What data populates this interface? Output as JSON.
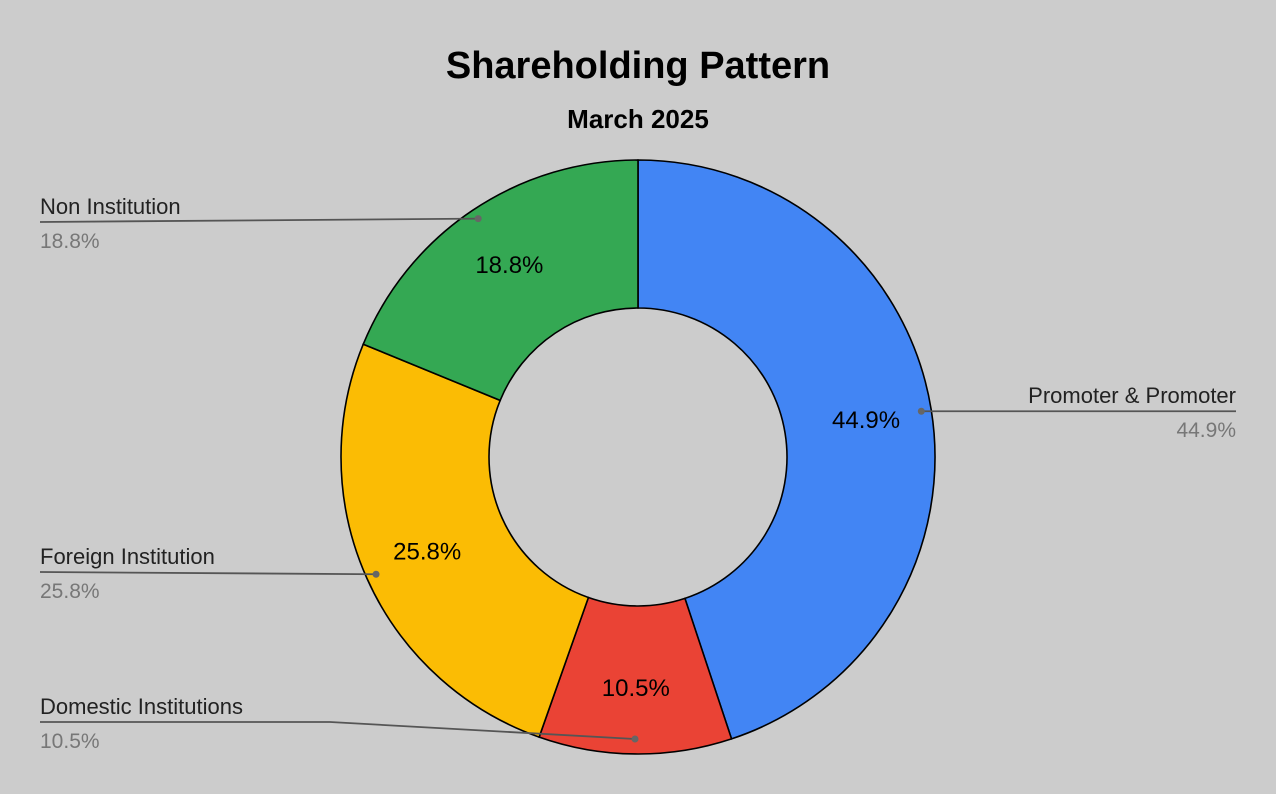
{
  "chart_data": {
    "type": "pie",
    "donut": true,
    "title": "Shareholding Pattern",
    "subtitle": "March 2025",
    "legend": "callouts",
    "series": [
      {
        "name": "Promoter & Promoter",
        "value": 44.9,
        "label": "44.9%",
        "color": "#4285f4",
        "callout_side": "right"
      },
      {
        "name": "Domestic Institutions",
        "value": 10.5,
        "label": "10.5%",
        "color": "#ea4335",
        "callout_side": "left"
      },
      {
        "name": "Foreign Institution",
        "value": 25.8,
        "label": "25.8%",
        "color": "#fbbc04",
        "callout_side": "left"
      },
      {
        "name": "Non Institution",
        "value": 18.8,
        "label": "18.8%",
        "color": "#34a853",
        "callout_side": "left"
      }
    ]
  }
}
